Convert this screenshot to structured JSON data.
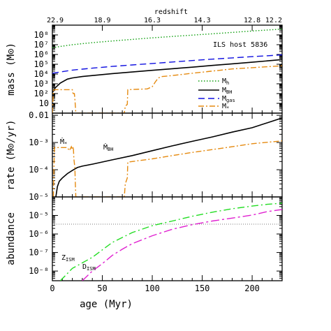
{
  "chart_data": [
    {
      "type": "line",
      "panel": "mass",
      "top_axis": {
        "label": "redshift",
        "ticks": [
          {
            "age": 0,
            "text": "22.9"
          },
          {
            "age": 50,
            "text": "18.9"
          },
          {
            "age": 100,
            "text": "16.3"
          },
          {
            "age": 150,
            "text": "14.3"
          },
          {
            "age": 200,
            "text": "12.8"
          },
          {
            "age": 230,
            "text": "12.2"
          }
        ]
      },
      "annotation": "ILS host 5836",
      "ylabel": "mass (M⊙)",
      "yscale": "log",
      "ylim": [
        1,
        1000000000.0
      ],
      "xlim": [
        0,
        230
      ],
      "yticks": [
        {
          "v": 10.0,
          "text": "10"
        },
        {
          "v": 100.0,
          "text": "10²"
        },
        {
          "v": 1000.0,
          "text": "10³"
        },
        {
          "v": 10000.0,
          "text": "10⁴"
        },
        {
          "v": 100000.0,
          "text": "10⁵"
        },
        {
          "v": 1000000.0,
          "text": "10⁶"
        },
        {
          "v": 10000000.0,
          "text": "10⁷"
        },
        {
          "v": 100000000.0,
          "text": "10⁸"
        }
      ],
      "legend_position": "right-middle",
      "series": [
        {
          "name": "M_h",
          "label_main": "M",
          "label_sub": "h",
          "color": "#10a010",
          "dash": "1.5,2.5",
          "x": [
            0,
            20,
            40,
            60,
            80,
            100,
            120,
            140,
            160,
            180,
            200,
            230
          ],
          "y": [
            5000000.0,
            10000000.0,
            16000000.0,
            24000000.0,
            35000000.0,
            50000000.0,
            70000000.0,
            95000000.0,
            130000000.0,
            180000000.0,
            250000000.0,
            400000000.0
          ]
        },
        {
          "name": "M_BH",
          "label_main": "M",
          "label_sub": "BH",
          "color": "#000000",
          "dash": "",
          "x": [
            0,
            3,
            8,
            15,
            20,
            30,
            40,
            60,
            80,
            100,
            120,
            140,
            160,
            180,
            200,
            230
          ],
          "y": [
            130,
            400,
            1200,
            3000,
            4000,
            5500,
            7000,
            11000.0,
            16000.0,
            24000.0,
            35000.0,
            50000.0,
            75000.0,
            110000.0,
            160000.0,
            300000.0
          ]
        },
        {
          "name": "M_gas",
          "label_main": "M",
          "label_sub": "gas",
          "color": "#1010e0",
          "dash": "9,5",
          "x": [
            0,
            20,
            40,
            60,
            80,
            100,
            120,
            140,
            160,
            180,
            200,
            230
          ],
          "y": [
            12000.0,
            25000.0,
            40000.0,
            60000.0,
            85000.0,
            120000.0,
            170000.0,
            240000.0,
            330000.0,
            450000.0,
            600000.0,
            900000.0
          ]
        },
        {
          "name": "M_*",
          "label_main": "M",
          "label_sub": "*",
          "color": "#e58a10",
          "dash": "8,3,2,3",
          "x": [
            0,
            1,
            2,
            20,
            20.5,
            21,
            22,
            22.5,
            23.5,
            72,
            73,
            75,
            75.5,
            95,
            100,
            103,
            106,
            110,
            120,
            140,
            160,
            180,
            200,
            230
          ],
          "y": [
            1,
            200,
            250,
            250,
            120,
            100,
            100,
            30,
            1,
            1,
            5,
            8,
            250,
            300,
            500,
            1500,
            4000,
            5500,
            7000,
            12000.0,
            20000.0,
            33000.0,
            45000.0,
            70000.0
          ]
        }
      ]
    },
    {
      "type": "line",
      "panel": "rate",
      "ylabel": "rate (M⊙/yr)",
      "yscale": "log",
      "ylim": [
        1e-05,
        0.012
      ],
      "xlim": [
        0,
        230
      ],
      "yticks": [
        {
          "v": 1e-05,
          "text": "10⁻⁵"
        },
        {
          "v": 0.0001,
          "text": "10⁻⁴"
        },
        {
          "v": 0.001,
          "text": "10⁻³"
        },
        {
          "v": 0.01,
          "text": "0.01"
        }
      ],
      "series": [
        {
          "name": "Ṁ_BH",
          "label_main": "Ṁ",
          "label_sub": "BH",
          "color": "#000000",
          "dash": "",
          "x": [
            3.5,
            5,
            7,
            10,
            15,
            20,
            25,
            30,
            40,
            60,
            80,
            100,
            120,
            140,
            160,
            180,
            200,
            230
          ],
          "y": [
            1e-05,
            2.4e-05,
            3.8e-05,
            5e-05,
            7.2e-05,
            9.4e-05,
            0.00012,
            0.000135,
            0.00016,
            0.00023,
            0.00033,
            0.0005,
            0.00075,
            0.0011,
            0.0016,
            0.0024,
            0.0035,
            0.008
          ]
        },
        {
          "name": "Ṁ_*",
          "label_main": "Ṁ",
          "label_sub": "*",
          "color": "#e58a10",
          "dash": "8,3,2,3",
          "x": [
            1,
            2,
            15,
            17,
            19,
            20,
            21,
            21.5,
            22.5,
            23,
            23.5,
            72,
            73,
            75,
            75.5,
            80,
            100,
            120,
            140,
            160,
            180,
            200,
            230
          ],
          "y": [
            1e-05,
            0.00065,
            0.00065,
            0.0005,
            0.0007,
            0.00055,
            0.0007,
            0.00025,
            0.00012,
            3e-05,
            1e-05,
            1e-05,
            3e-05,
            5e-05,
            0.00019,
            0.0002,
            0.00025,
            0.00033,
            0.00043,
            0.00055,
            0.0007,
            0.0009,
            0.00115
          ]
        }
      ]
    },
    {
      "type": "line",
      "panel": "abundance",
      "ylabel": "abundance",
      "xlabel": "age (Myr)",
      "yscale": "log",
      "ylim": [
        3e-09,
        0.0001
      ],
      "xlim": [
        0,
        230
      ],
      "yticks": [
        {
          "v": 1e-08,
          "text": "10⁻⁸"
        },
        {
          "v": 1e-07,
          "text": "10⁻⁷"
        },
        {
          "v": 1e-06,
          "text": "10⁻⁶"
        },
        {
          "v": 1e-05,
          "text": "10⁻⁵"
        }
      ],
      "xticks": [
        {
          "v": 0,
          "text": "0"
        },
        {
          "v": 50,
          "text": "50"
        },
        {
          "v": 100,
          "text": "100"
        },
        {
          "v": 150,
          "text": "150"
        },
        {
          "v": 200,
          "text": "200"
        }
      ],
      "reference_line": {
        "y": 3.4e-06,
        "color": "#777777"
      },
      "series": [
        {
          "name": "Z_ISM",
          "label_main": "Z",
          "label_sub": "ISM",
          "color": "#22dd22",
          "dash": "10,4,2,4",
          "x": [
            8,
            20,
            40,
            60,
            80,
            100,
            120,
            140,
            160,
            180,
            200,
            215,
            230
          ],
          "y": [
            3e-09,
            1.4e-08,
            5.5e-08,
            3.5e-07,
            1.2e-06,
            2.8e-06,
            5e-06,
            9e-06,
            1.5e-05,
            2.3e-05,
            3.2e-05,
            4e-05,
            4.6e-05
          ]
        },
        {
          "name": "D_ISM",
          "label_main": "D",
          "label_sub": "ISM",
          "color": "#e020d0",
          "dash": "12,4,3,4",
          "x": [
            30,
            40,
            50,
            60,
            70,
            80,
            100,
            120,
            140,
            160,
            180,
            200,
            215,
            230
          ],
          "y": [
            3e-09,
            1e-08,
            2.5e-08,
            7e-08,
            1.5e-07,
            3e-07,
            8e-07,
            1.8e-06,
            3.2e-06,
            5e-06,
            7.2e-06,
            1.05e-05,
            1.6e-05,
            2.1e-05
          ]
        }
      ]
    }
  ]
}
